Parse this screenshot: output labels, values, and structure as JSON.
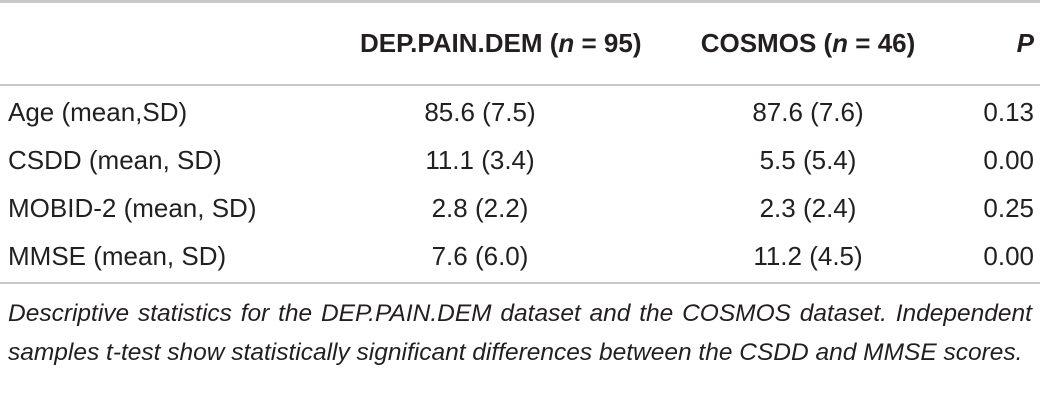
{
  "table": {
    "header": [
      {
        "pre": "DEP.PAIN.DEM (",
        "em": "n",
        "post": " = 95)"
      },
      {
        "pre": "COSMOS (",
        "em": "n",
        "post": " = 46)"
      },
      "P"
    ],
    "rows": [
      [
        "Age (mean,SD)",
        "85.6 (7.5)",
        "87.6 (7.6)",
        "0.13"
      ],
      [
        "CSDD (mean, SD)",
        "11.1 (3.4)",
        "5.5 (5.4)",
        "0.00"
      ],
      [
        "MOBID-2 (mean, SD)",
        "2.8 (2.2)",
        "2.3 (2.4)",
        "0.25"
      ],
      [
        "MMSE (mean, SD)",
        "7.6 (6.0)",
        "11.2 (4.5)",
        "0.00"
      ]
    ],
    "caption": "Descriptive statistics for the DEP.PAIN.DEM dataset and the COSMOS dataset. Independent samples t-test show statistically significant differences between the CSDD and MMSE scores."
  }
}
